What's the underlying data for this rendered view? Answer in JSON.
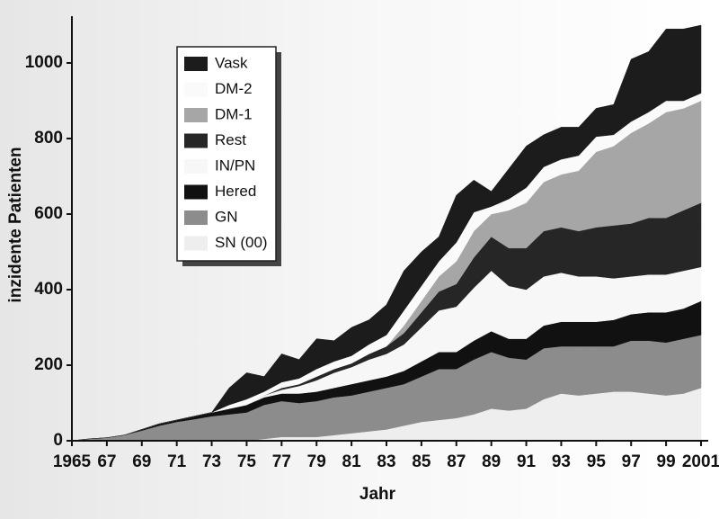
{
  "chart_data": {
    "type": "stacked-area",
    "x_label": "Jahr",
    "y_label": "inzidente Patienten",
    "x": [
      1965,
      1966,
      1967,
      1968,
      1969,
      1970,
      1971,
      1972,
      1973,
      1974,
      1975,
      1976,
      1977,
      1978,
      1979,
      1980,
      1981,
      1982,
      1983,
      1984,
      1985,
      1986,
      1987,
      1988,
      1989,
      1990,
      1991,
      1992,
      1993,
      1994,
      1995,
      1996,
      1997,
      1998,
      1999,
      2000,
      2001
    ],
    "xlim": [
      1965,
      2001
    ],
    "xticks": [
      {
        "value": 1965,
        "label": "1965"
      },
      {
        "value": 1967,
        "label": "67"
      },
      {
        "value": 1969,
        "label": "69"
      },
      {
        "value": 1971,
        "label": "71"
      },
      {
        "value": 1973,
        "label": "73"
      },
      {
        "value": 1975,
        "label": "75"
      },
      {
        "value": 1977,
        "label": "77"
      },
      {
        "value": 1979,
        "label": "79"
      },
      {
        "value": 1981,
        "label": "81"
      },
      {
        "value": 1983,
        "label": "83"
      },
      {
        "value": 1985,
        "label": "85"
      },
      {
        "value": 1987,
        "label": "87"
      },
      {
        "value": 1989,
        "label": "89"
      },
      {
        "value": 1991,
        "label": "91"
      },
      {
        "value": 1993,
        "label": "93"
      },
      {
        "value": 1995,
        "label": "95"
      },
      {
        "value": 1997,
        "label": "97"
      },
      {
        "value": 1999,
        "label": "99"
      },
      {
        "value": 2001,
        "label": "2001"
      }
    ],
    "ylim": [
      0,
      1100
    ],
    "yticks": [
      0,
      200,
      400,
      600,
      800,
      1000
    ],
    "legend": "upper left",
    "series": [
      {
        "name": "SN (00)",
        "color": "#eeeeee",
        "values": [
          0,
          0,
          0,
          0,
          0,
          0,
          0,
          0,
          0,
          0,
          0,
          5,
          10,
          10,
          10,
          15,
          20,
          25,
          30,
          40,
          50,
          55,
          60,
          70,
          85,
          80,
          85,
          110,
          125,
          120,
          125,
          130,
          130,
          125,
          120,
          125,
          140
        ]
      },
      {
        "name": "GN",
        "color": "#8c8c8c",
        "values": [
          0,
          5,
          8,
          15,
          27,
          40,
          50,
          57,
          65,
          70,
          75,
          90,
          95,
          90,
          95,
          100,
          100,
          105,
          110,
          110,
          120,
          135,
          130,
          145,
          150,
          140,
          130,
          135,
          125,
          130,
          125,
          120,
          135,
          140,
          140,
          145,
          140
        ]
      },
      {
        "name": "Hered",
        "color": "#111111",
        "values": [
          0,
          0,
          0,
          0,
          3,
          5,
          5,
          8,
          10,
          15,
          20,
          20,
          20,
          25,
          25,
          25,
          30,
          30,
          30,
          35,
          40,
          45,
          45,
          50,
          55,
          50,
          55,
          60,
          65,
          65,
          65,
          70,
          70,
          75,
          80,
          80,
          90
        ]
      },
      {
        "name": "IN/PN",
        "color": "#f7f7f7",
        "values": [
          0,
          0,
          0,
          0,
          0,
          0,
          0,
          0,
          0,
          0,
          0,
          5,
          10,
          20,
          30,
          40,
          45,
          55,
          60,
          70,
          90,
          110,
          120,
          140,
          160,
          140,
          130,
          130,
          130,
          120,
          120,
          110,
          100,
          100,
          100,
          100,
          90
        ]
      },
      {
        "name": "Rest",
        "color": "#262626",
        "values": [
          0,
          0,
          0,
          0,
          0,
          0,
          0,
          0,
          0,
          0,
          0,
          0,
          5,
          5,
          10,
          10,
          10,
          15,
          20,
          30,
          40,
          50,
          60,
          80,
          90,
          100,
          110,
          120,
          120,
          120,
          130,
          140,
          140,
          150,
          150,
          160,
          170
        ]
      },
      {
        "name": "DM-1",
        "color": "#a6a6a6",
        "values": [
          0,
          0,
          0,
          0,
          0,
          0,
          0,
          0,
          0,
          0,
          0,
          0,
          0,
          0,
          0,
          0,
          0,
          0,
          0,
          20,
          30,
          40,
          60,
          70,
          60,
          100,
          120,
          130,
          140,
          160,
          200,
          210,
          240,
          250,
          280,
          270,
          270
        ]
      },
      {
        "name": "DM-2",
        "color": "#fafafa",
        "values": [
          0,
          0,
          0,
          0,
          0,
          0,
          0,
          0,
          0,
          10,
          15,
          10,
          15,
          15,
          20,
          20,
          20,
          25,
          30,
          40,
          40,
          40,
          50,
          50,
          20,
          30,
          40,
          40,
          40,
          40,
          40,
          30,
          30,
          30,
          30,
          20,
          20
        ]
      },
      {
        "name": "Vask",
        "color": "#1c1c1c",
        "values": [
          0,
          0,
          0,
          0,
          0,
          0,
          0,
          0,
          0,
          45,
          70,
          40,
          75,
          50,
          80,
          55,
          75,
          65,
          80,
          105,
          90,
          65,
          125,
          85,
          40,
          80,
          110,
          85,
          85,
          75,
          75,
          80,
          165,
          160,
          190,
          190,
          180
        ]
      }
    ]
  }
}
